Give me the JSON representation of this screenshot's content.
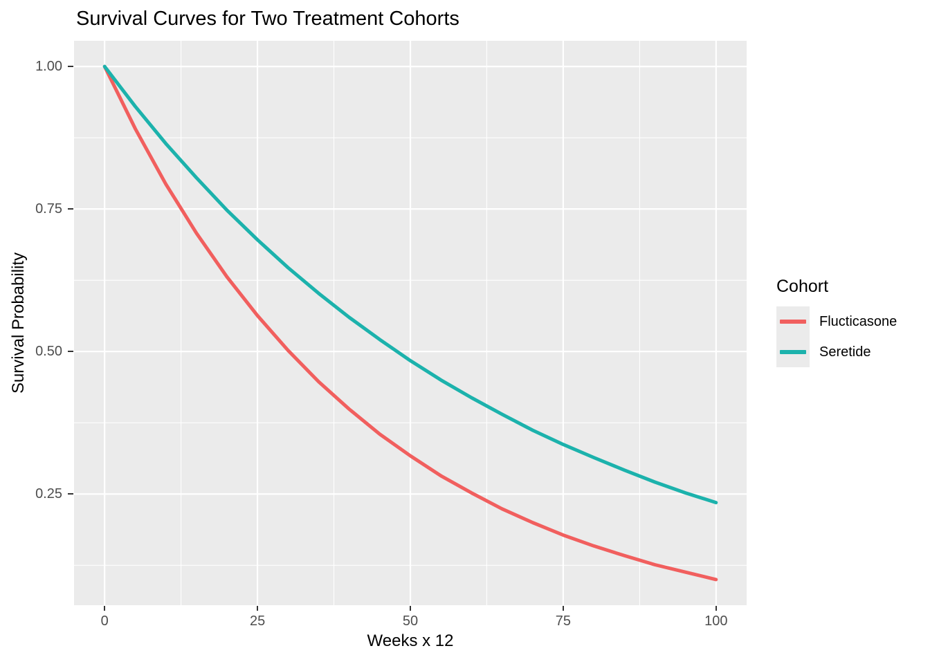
{
  "chart_data": {
    "type": "line",
    "title": "Survival Curves for Two Treatment Cohorts",
    "xlabel": "Weeks x 12",
    "ylabel": "Survival Probability",
    "legend_title": "Cohort",
    "legend_position": "right",
    "grid": true,
    "panel_background": "#EBEBEB",
    "gridline_color": "#FFFFFF",
    "tick_label_color": "#4D4D4D",
    "xlim": [
      -5,
      105
    ],
    "ylim": [
      0.055,
      1.045
    ],
    "x_ticks": [
      0,
      25,
      50,
      75,
      100
    ],
    "x_tick_labels": [
      "0",
      "25",
      "50",
      "75",
      "100"
    ],
    "y_ticks": [
      0.25,
      0.5,
      0.75,
      1.0
    ],
    "y_tick_labels": [
      "0.25",
      "0.50",
      "0.75",
      "1.00"
    ],
    "x": [
      0,
      5,
      10,
      15,
      20,
      25,
      30,
      35,
      40,
      45,
      50,
      55,
      60,
      65,
      70,
      75,
      80,
      85,
      90,
      95,
      100
    ],
    "series": [
      {
        "name": "Flucticasone",
        "color": "#F15F5E",
        "values": [
          1.0,
          0.891,
          0.794,
          0.708,
          0.631,
          0.563,
          0.502,
          0.447,
          0.399,
          0.355,
          0.317,
          0.282,
          0.252,
          0.224,
          0.2,
          0.178,
          0.159,
          0.142,
          0.126,
          0.113,
          0.1
        ]
      },
      {
        "name": "Seretide",
        "color": "#1CB2AC",
        "values": [
          1.0,
          0.93,
          0.865,
          0.805,
          0.748,
          0.696,
          0.647,
          0.602,
          0.56,
          0.521,
          0.484,
          0.45,
          0.419,
          0.39,
          0.362,
          0.337,
          0.314,
          0.292,
          0.271,
          0.252,
          0.235
        ]
      }
    ]
  }
}
